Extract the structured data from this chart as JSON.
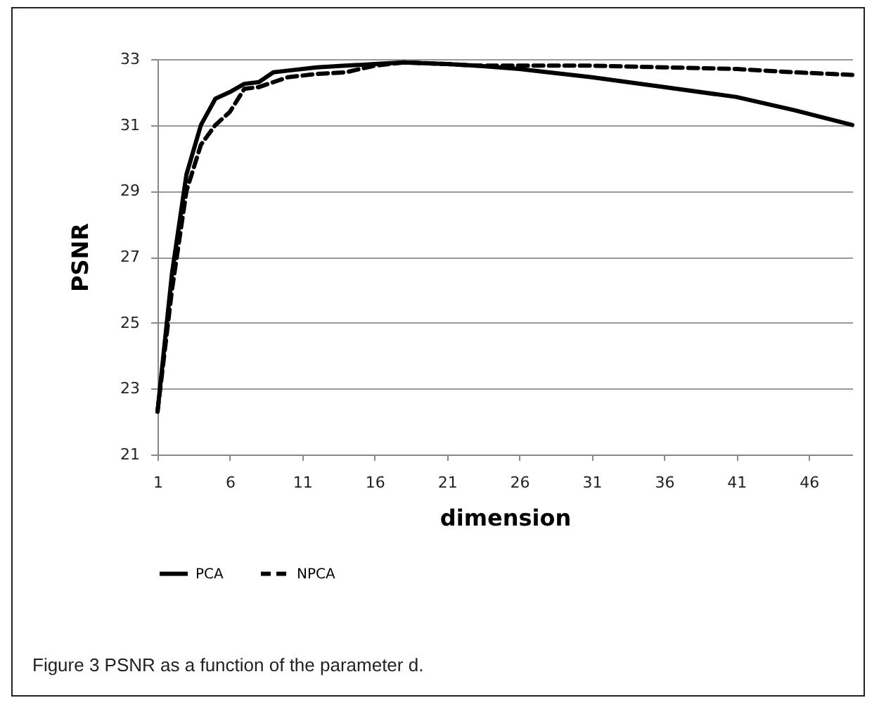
{
  "chart_data": {
    "type": "line",
    "xlabel": "dimension",
    "ylabel": "PSNR",
    "annotations": [
      "Figure 3 PSNR as a function of the parameter d."
    ],
    "x": [
      1,
      2,
      3,
      4,
      5,
      6,
      7,
      8,
      9,
      10,
      12,
      14,
      16,
      18,
      21,
      23,
      26,
      28,
      31,
      36,
      41,
      45,
      49
    ],
    "xlim": [
      1,
      49
    ],
    "xticks": [
      1,
      6,
      11,
      16,
      21,
      26,
      31,
      36,
      41,
      46
    ],
    "ylim": [
      21,
      33
    ],
    "yticks": [
      21,
      23,
      25,
      27,
      29,
      31,
      33
    ],
    "grid": "y",
    "legend": "bottom",
    "series": [
      {
        "name": "PCA",
        "color": "#000000",
        "line_style": "solid",
        "values": [
          22.3,
          26.5,
          29.5,
          31.0,
          31.8,
          32.0,
          32.25,
          32.3,
          32.6,
          32.65,
          32.75,
          32.8,
          32.85,
          32.9,
          32.85,
          32.8,
          32.7,
          32.6,
          32.45,
          32.15,
          31.85,
          31.45,
          31.0
        ]
      },
      {
        "name": "NPCA",
        "color": "#000000",
        "line_style": "dashed",
        "values": [
          22.3,
          26.0,
          29.0,
          30.4,
          31.0,
          31.4,
          32.1,
          32.15,
          32.3,
          32.45,
          32.55,
          32.6,
          32.8,
          32.9,
          32.85,
          32.8,
          32.8,
          32.8,
          32.8,
          32.75,
          32.7,
          32.6,
          32.52
        ]
      }
    ]
  }
}
